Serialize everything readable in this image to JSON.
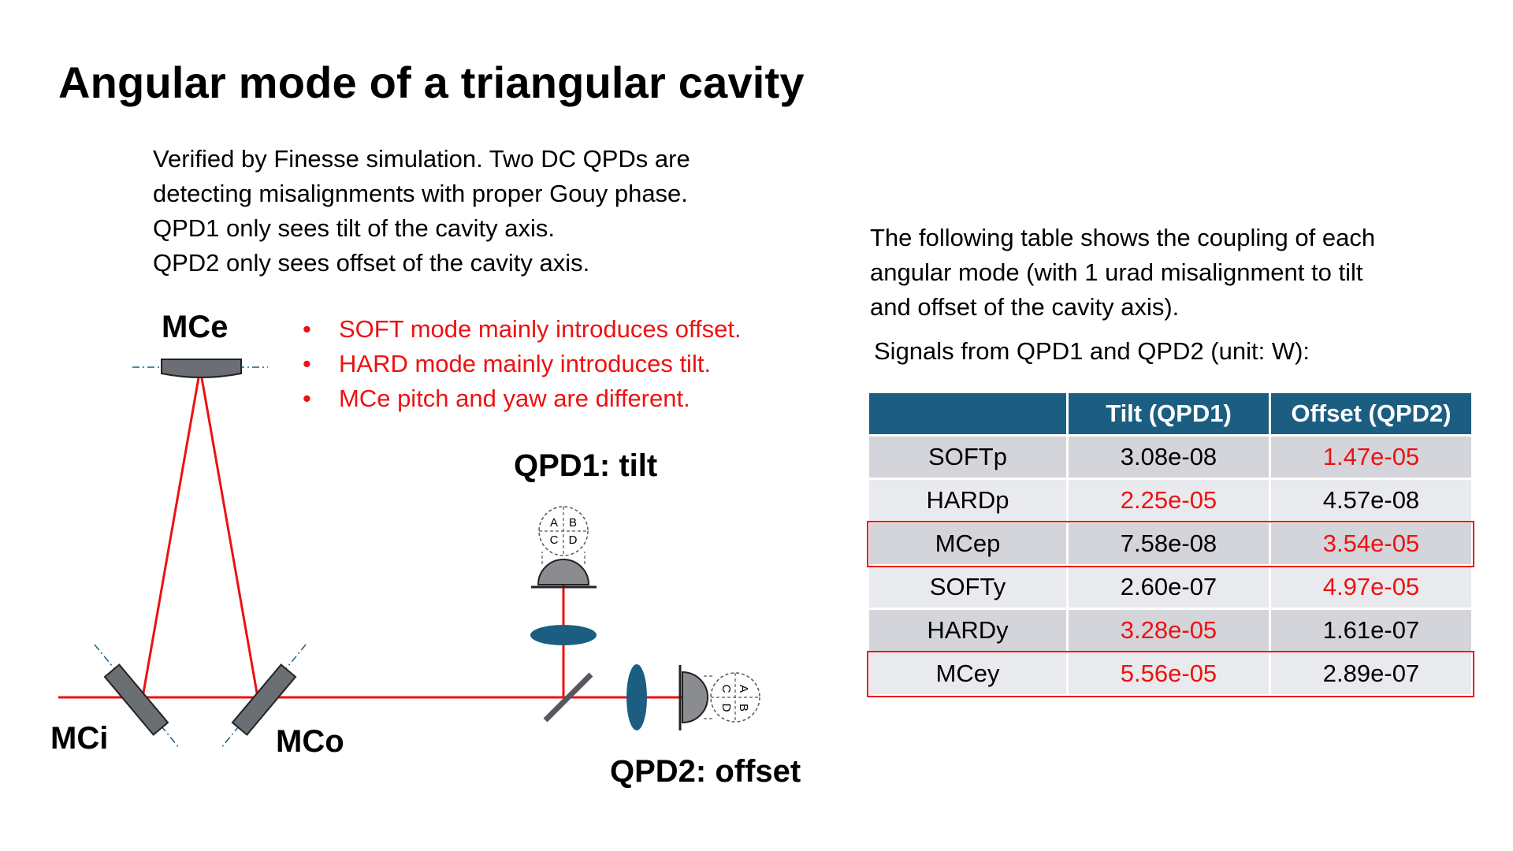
{
  "title": "Angular mode of a triangular cavity",
  "intro": [
    "Verified by Finesse simulation. Two DC QPDs are",
    "detecting misalignments with proper Gouy phase.",
    "QPD1 only sees tilt of the cavity axis.",
    "QPD2 only sees offset of the cavity axis."
  ],
  "bullets": [
    "SOFT mode mainly introduces offset.",
    "HARD mode mainly introduces tilt.",
    "MCe pitch and yaw are different."
  ],
  "right_text": [
    "The following table shows the coupling of each",
    "angular mode (with 1 urad misalignment to tilt",
    "and offset of the cavity axis)."
  ],
  "signals_label": "Signals from QPD1 and QPD2 (unit: W):",
  "diagram": {
    "labels": {
      "mce": "MCe",
      "mci": "MCi",
      "mco": "MCo",
      "qpd1": "QPD1: tilt",
      "qpd2": "QPD2: offset"
    },
    "quadrants": [
      "A",
      "B",
      "C",
      "D"
    ],
    "colors": {
      "beam": "#ee1111",
      "mirror": "#6b6e72",
      "lens": "#1b5e82"
    }
  },
  "table": {
    "headers": [
      "",
      "Tilt (QPD1)",
      "Offset (QPD2)"
    ],
    "rows": [
      {
        "mode": "SOFTp",
        "tilt": "3.08e-08",
        "offset": "1.47e-05",
        "tilt_red": false,
        "offset_red": true,
        "highlight": false
      },
      {
        "mode": "HARDp",
        "tilt": "2.25e-05",
        "offset": "4.57e-08",
        "tilt_red": true,
        "offset_red": false,
        "highlight": false
      },
      {
        "mode": "MCep",
        "tilt": "7.58e-08",
        "offset": "3.54e-05",
        "tilt_red": false,
        "offset_red": true,
        "highlight": true
      },
      {
        "mode": "SOFTy",
        "tilt": "2.60e-07",
        "offset": "4.97e-05",
        "tilt_red": false,
        "offset_red": true,
        "highlight": false
      },
      {
        "mode": "HARDy",
        "tilt": "3.28e-05",
        "offset": "1.61e-07",
        "tilt_red": true,
        "offset_red": false,
        "highlight": false
      },
      {
        "mode": "MCey",
        "tilt": "5.56e-05",
        "offset": "2.89e-07",
        "tilt_red": true,
        "offset_red": false,
        "highlight": true
      }
    ],
    "highlight_color": "#ee1111",
    "header_color": "#1b5e82"
  }
}
